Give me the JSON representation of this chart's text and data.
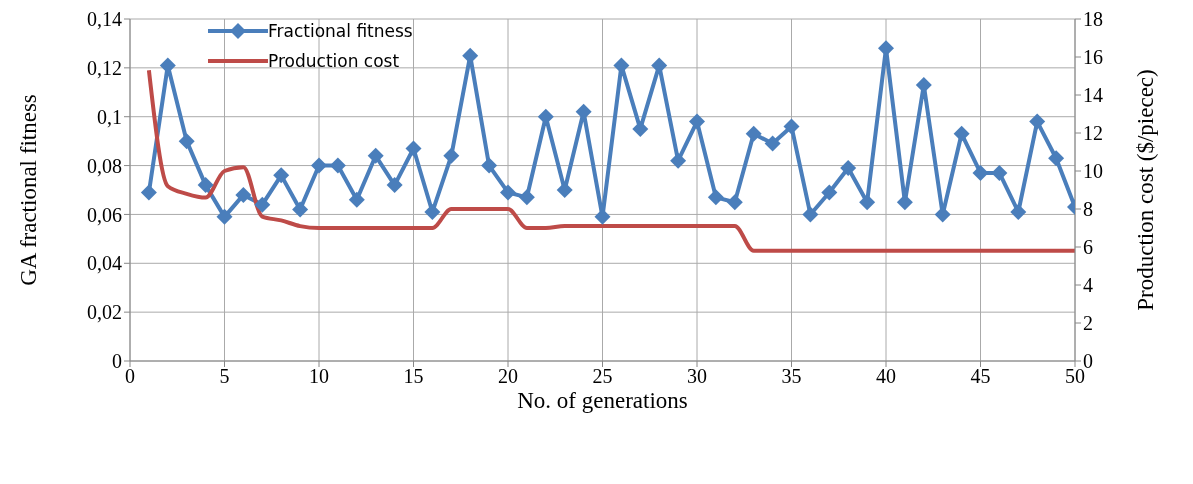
{
  "chart_data": {
    "type": "line",
    "xlabel": "No. of generations",
    "ylabel": "GA fractional  fitness",
    "y2label": "Production cost ($/piecec)",
    "x": [
      1,
      2,
      3,
      4,
      5,
      6,
      7,
      8,
      9,
      10,
      11,
      12,
      13,
      14,
      15,
      16,
      17,
      18,
      19,
      20,
      21,
      22,
      23,
      24,
      25,
      26,
      27,
      28,
      29,
      30,
      31,
      32,
      33,
      34,
      35,
      36,
      37,
      38,
      39,
      40,
      41,
      42,
      43,
      44,
      45,
      46,
      47,
      48,
      49,
      50
    ],
    "series": [
      {
        "name": "Fractional fitness",
        "color": "#4a7ebb",
        "marker": "diamond",
        "values": [
          0.069,
          0.121,
          0.09,
          0.072,
          0.059,
          0.068,
          0.064,
          0.076,
          0.062,
          0.08,
          0.08,
          0.066,
          0.084,
          0.072,
          0.087,
          0.061,
          0.084,
          0.125,
          0.08,
          0.069,
          0.067,
          0.1,
          0.07,
          0.102,
          0.059,
          0.121,
          0.095,
          0.121,
          0.082,
          0.098,
          0.067,
          0.065,
          0.093,
          0.089,
          0.096,
          0.06,
          0.069,
          0.079,
          0.065,
          0.128,
          0.065,
          0.113,
          0.06,
          0.093,
          0.077,
          0.077,
          0.061,
          0.098,
          0.083,
          0.063
        ]
      },
      {
        "name": "Production cost",
        "color": "#be4b48",
        "marker": "none",
        "axis": "y2",
        "values": [
          15.3,
          9.2,
          8.8,
          8.6,
          10.0,
          10.2,
          7.6,
          7.4,
          7.1,
          7.0,
          7.0,
          7.0,
          7.0,
          7.0,
          7.0,
          7.0,
          8.0,
          8.0,
          8.0,
          8.0,
          7.0,
          7.0,
          7.1,
          7.1,
          7.1,
          7.1,
          7.1,
          7.1,
          7.1,
          7.1,
          7.1,
          7.1,
          5.8,
          5.8,
          5.8,
          5.8,
          5.8,
          5.8,
          5.8,
          5.8,
          5.8,
          5.8,
          5.8,
          5.8,
          5.8,
          5.8,
          5.8,
          5.8,
          5.8,
          5.8
        ]
      }
    ],
    "xlim": [
      0,
      50
    ],
    "xticks": [
      0,
      5,
      10,
      15,
      20,
      25,
      30,
      35,
      40,
      45,
      50
    ],
    "ylim": [
      0,
      0.14
    ],
    "yticks": [
      0,
      {
        "value": 0.02,
        "label": "0,02"
      },
      {
        "value": 0.04,
        "label": "0,04"
      },
      {
        "value": 0.06,
        "label": "0,06"
      },
      {
        "value": 0.08,
        "label": "0,08"
      },
      {
        "value": 0.1,
        "label": "0,1"
      },
      {
        "value": 0.12,
        "label": "0,12"
      },
      {
        "value": 0.14,
        "label": "0,14"
      }
    ],
    "y2lim": [
      0,
      18
    ],
    "y2ticks": [
      0,
      2,
      4,
      6,
      8,
      10,
      12,
      14,
      16,
      18
    ],
    "grid": true,
    "legend": "top left",
    "line_style": "solid"
  }
}
